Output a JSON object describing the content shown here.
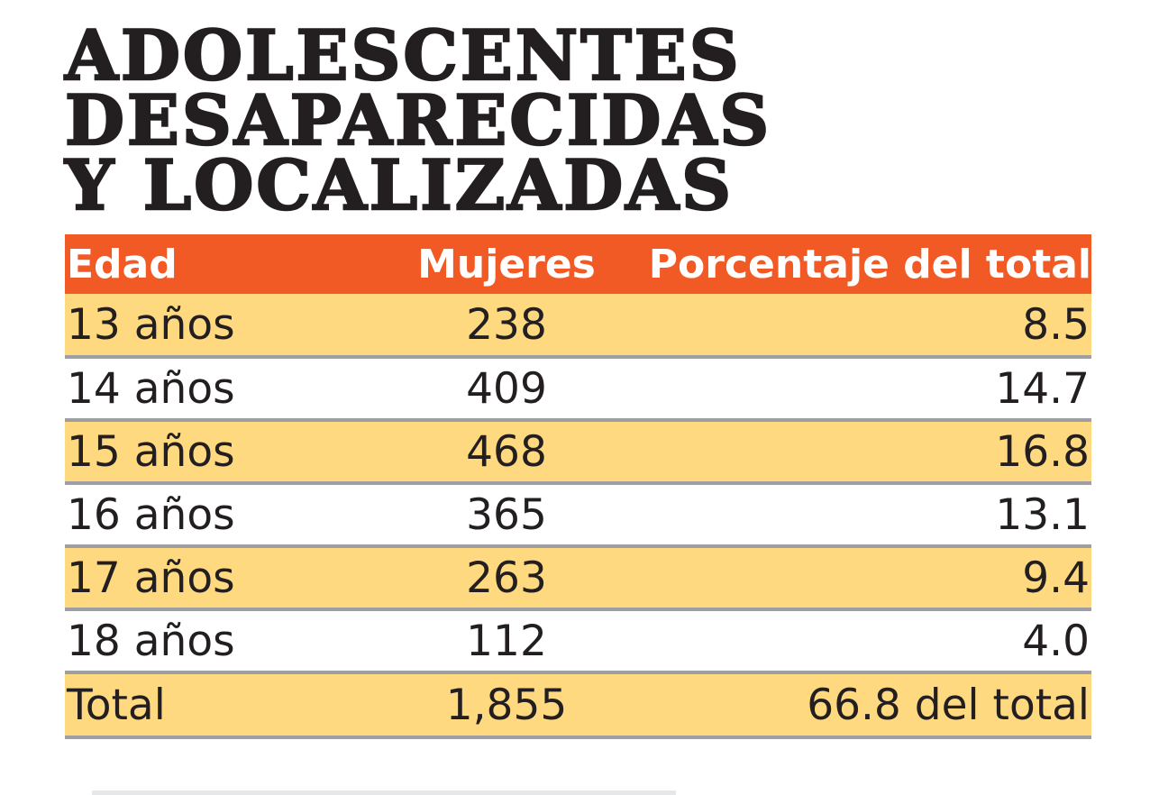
{
  "title": {
    "line1": "ADOLESCENTES",
    "line2": "DESAPARECIDAS",
    "line3": "Y LOCALIZADAS"
  },
  "table": {
    "headers": {
      "edad": "Edad",
      "mujeres": "Mujeres",
      "porcentaje": "Porcentaje del total"
    },
    "rows": [
      {
        "edad": "13 años",
        "mujeres": "238",
        "porcentaje": "8.5"
      },
      {
        "edad": "14 años",
        "mujeres": "409",
        "porcentaje": "14.7"
      },
      {
        "edad": "15 años",
        "mujeres": "468",
        "porcentaje": "16.8"
      },
      {
        "edad": "16 años",
        "mujeres": "365",
        "porcentaje": "13.1"
      },
      {
        "edad": "17 años",
        "mujeres": "263",
        "porcentaje": "9.4"
      },
      {
        "edad": "18 años",
        "mujeres": "112",
        "porcentaje": "4.0"
      }
    ],
    "total": {
      "edad": "Total",
      "mujeres": "1,855",
      "porcentaje": "66.8 del total"
    }
  },
  "colors": {
    "header_bg": "#f15a24",
    "shaded_row_bg": "#ffd980",
    "text": "#231f20",
    "row_divider": "#9d9fa2"
  }
}
